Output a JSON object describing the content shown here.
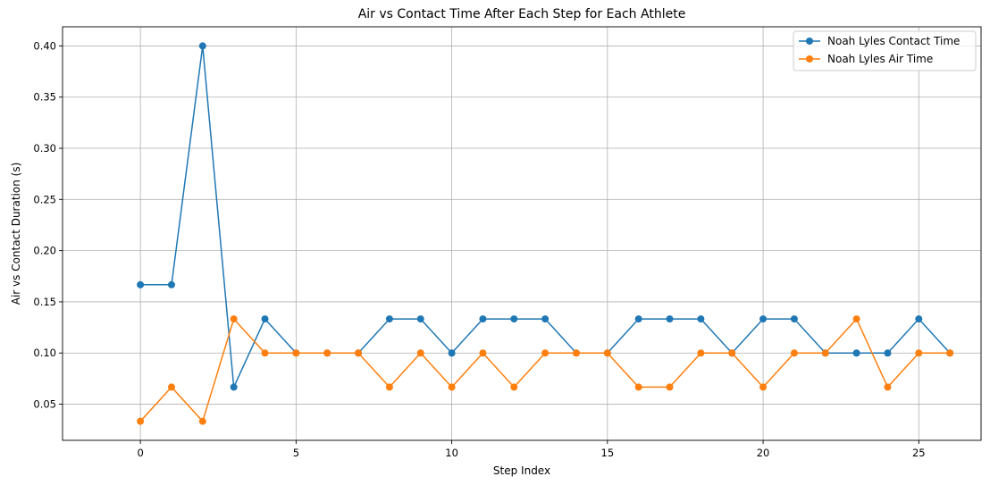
{
  "chart_data": {
    "type": "line",
    "title": "Air vs Contact Time After Each Step for Each Athlete",
    "xlabel": "Step Index",
    "ylabel": "Air vs Contact Duration (s)",
    "xlim": [
      -2.5,
      27
    ],
    "ylim": [
      0.0147,
      0.4187
    ],
    "xticks": [
      0,
      5,
      10,
      15,
      20,
      25
    ],
    "yticks": [
      0.05,
      0.1,
      0.15,
      0.2,
      0.25,
      0.3,
      0.35,
      0.4
    ],
    "ytick_labels": [
      "0.05",
      "0.10",
      "0.15",
      "0.20",
      "0.25",
      "0.30",
      "0.35",
      "0.40"
    ],
    "grid": true,
    "legend_position": "top-right",
    "x": [
      0,
      1,
      2,
      3,
      4,
      5,
      6,
      7,
      8,
      9,
      10,
      11,
      12,
      13,
      14,
      15,
      16,
      17,
      18,
      19,
      20,
      21,
      22,
      23,
      24,
      25,
      26
    ],
    "series": [
      {
        "name": "Noah Lyles Contact Time",
        "color": "#1f77b4",
        "values": [
          0.1667,
          0.1667,
          0.4,
          0.0667,
          0.1333,
          0.1,
          0.1,
          0.1,
          0.1333,
          0.1333,
          0.1,
          0.1333,
          0.1333,
          0.1333,
          0.1,
          0.1,
          0.1333,
          0.1333,
          0.1333,
          0.1,
          0.1333,
          0.1333,
          0.1,
          0.1,
          0.1,
          0.1333,
          0.1
        ]
      },
      {
        "name": "Noah Lyles Air Time",
        "color": "#ff7f0e",
        "values": [
          0.0333,
          0.0667,
          0.0333,
          0.1333,
          0.1,
          0.1,
          0.1,
          0.1,
          0.0667,
          0.1,
          0.0667,
          0.1,
          0.0667,
          0.1,
          0.1,
          0.1,
          0.0667,
          0.0667,
          0.1,
          0.1,
          0.0667,
          0.1,
          0.1,
          0.1333,
          0.0667,
          0.1,
          0.1
        ]
      }
    ]
  }
}
